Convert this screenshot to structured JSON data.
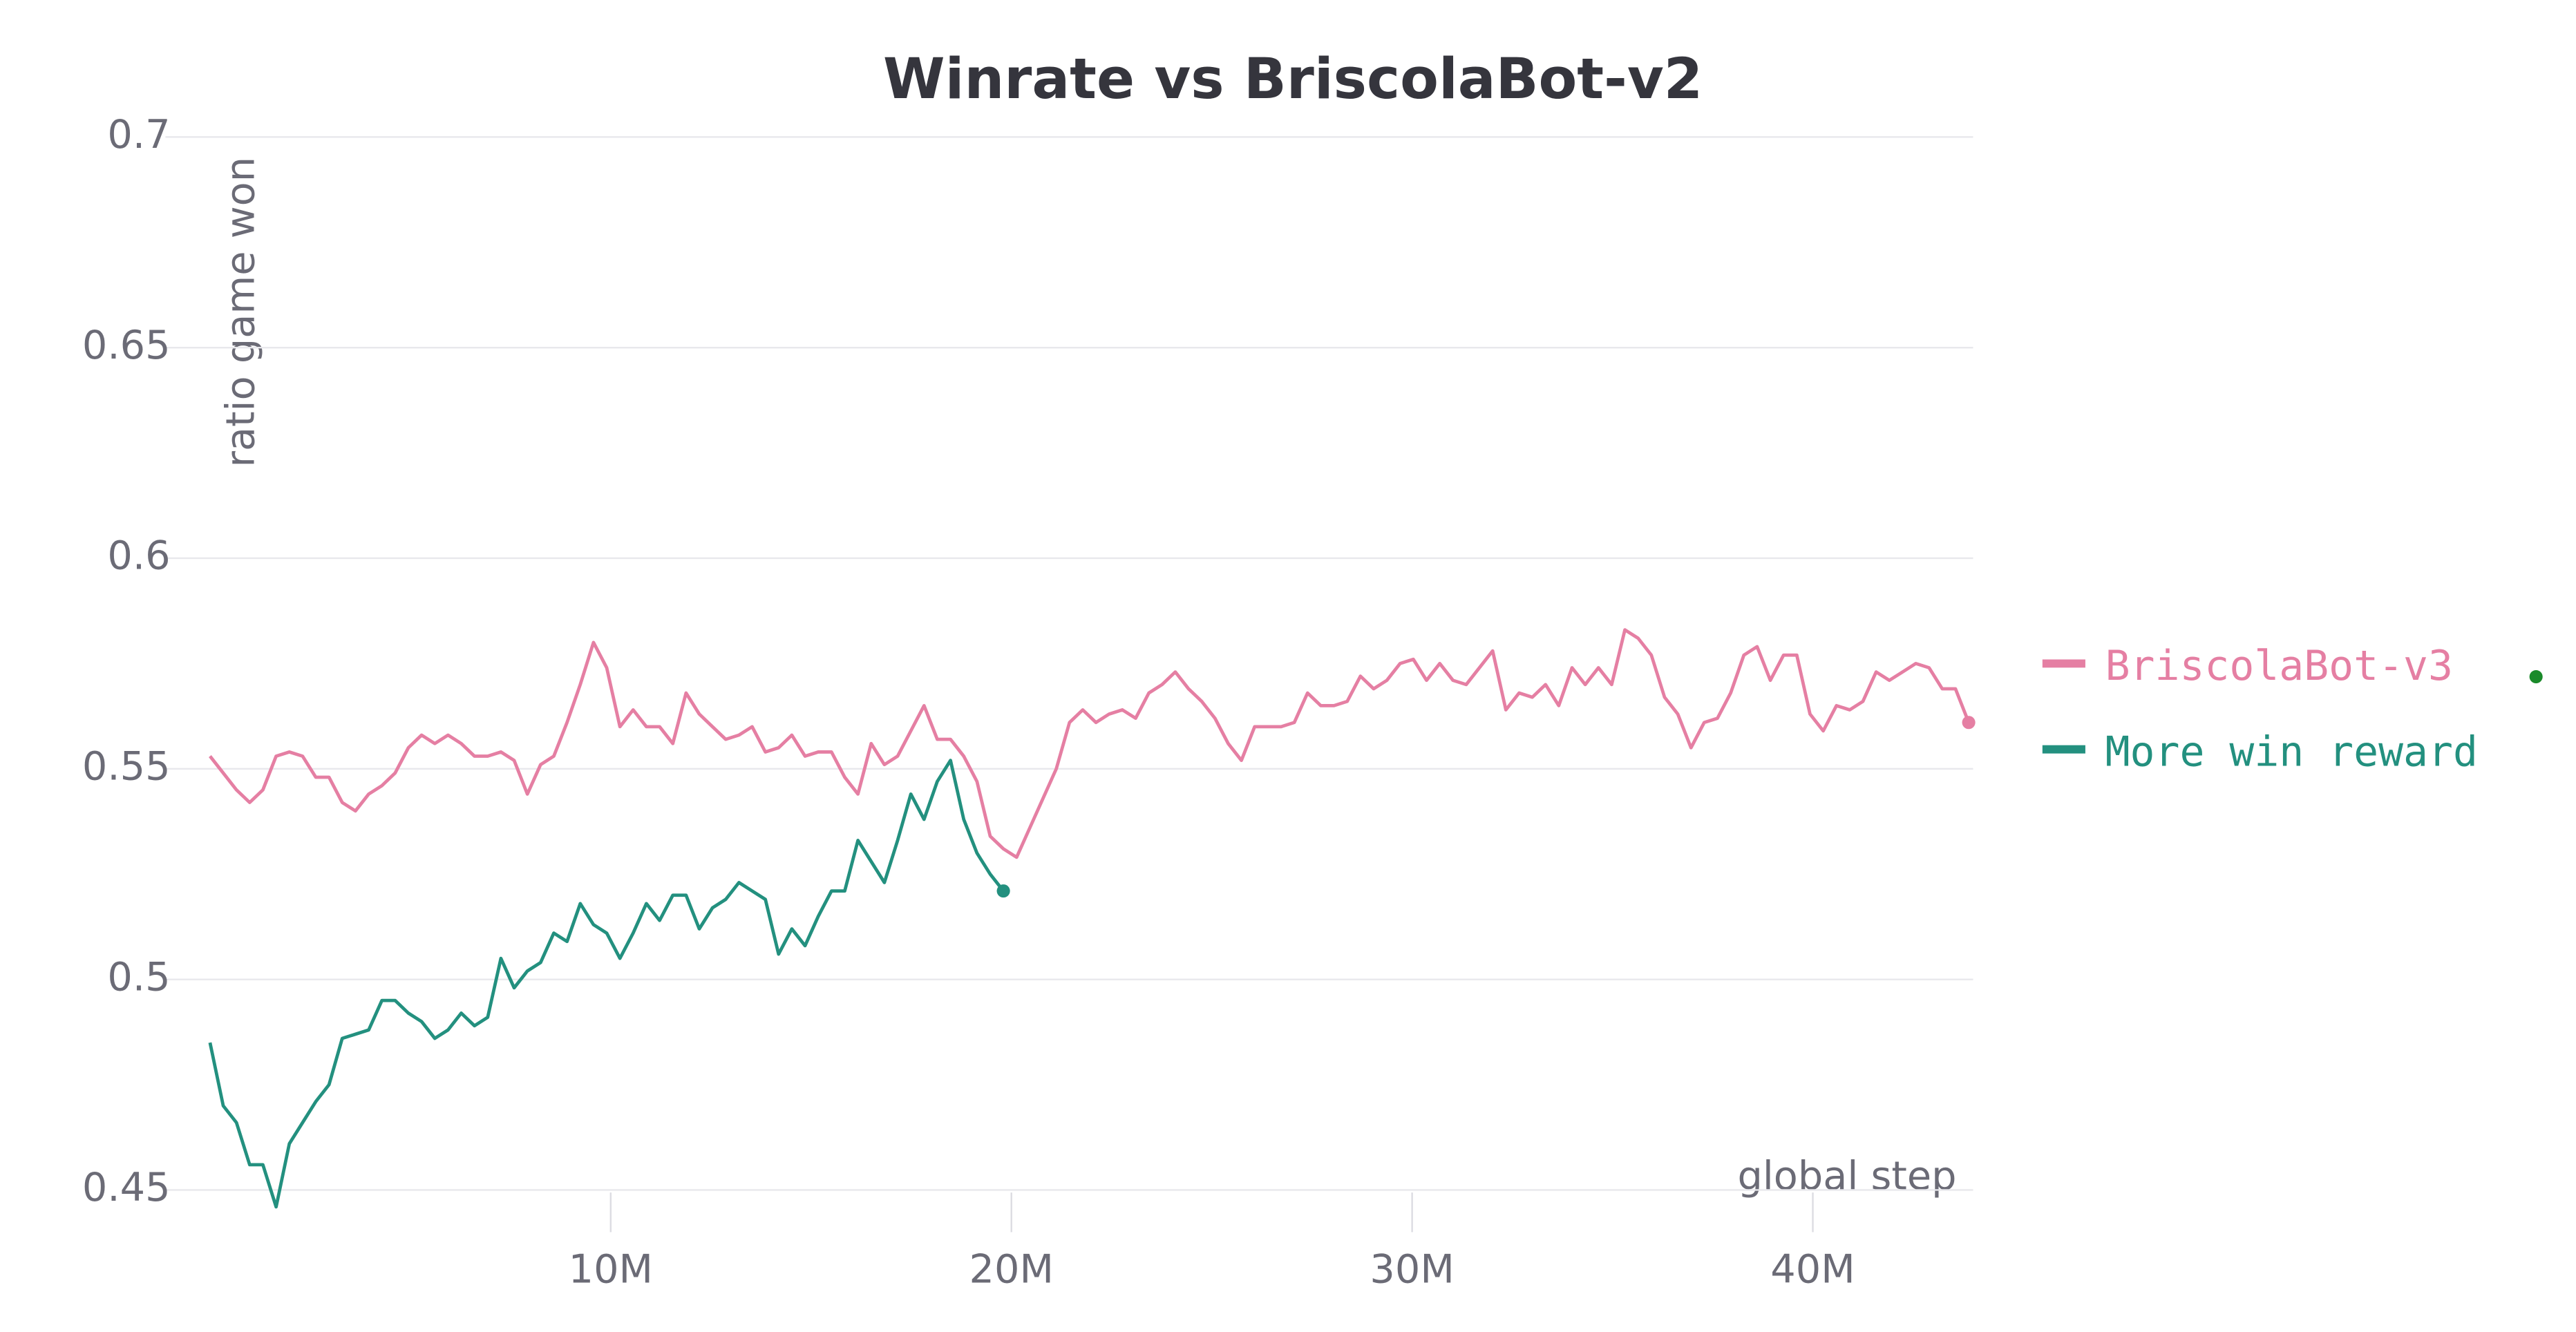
{
  "chart_data": {
    "type": "line",
    "title": "Winrate vs BriscolaBot-v2",
    "x_label": "global step",
    "y_label": "ratio game won",
    "xlim": [
      0,
      44000000
    ],
    "ylim": [
      0.44,
      0.7
    ],
    "xticks": [
      {
        "value": 10000000,
        "label": "10M"
      },
      {
        "value": 20000000,
        "label": "20M"
      },
      {
        "value": 30000000,
        "label": "30M"
      },
      {
        "value": 40000000,
        "label": "40M"
      }
    ],
    "yticks": [
      0.45,
      0.5,
      0.55,
      0.6,
      0.65,
      0.7
    ],
    "grid": true,
    "legend": "right",
    "series": [
      {
        "name": "BriscolaBot-v3",
        "color": "#e57fa3",
        "x": [
          0,
          330000,
          660000,
          990000,
          1320000,
          1650000,
          1980000,
          2310000,
          2640000,
          2970000,
          3300000,
          3630000,
          3960000,
          4290000,
          4620000,
          4950000,
          5280000,
          5610000,
          5940000,
          6270000,
          6600000,
          6930000,
          7260000,
          7590000,
          7920000,
          8250000,
          8580000,
          8910000,
          9240000,
          9570000,
          9900000,
          10230000,
          10560000,
          10890000,
          11220000,
          11550000,
          11880000,
          12210000,
          12540000,
          12870000,
          13200000,
          13530000,
          13860000,
          14190000,
          14520000,
          14850000,
          15180000,
          15510000,
          15840000,
          16170000,
          16500000,
          16830000,
          17160000,
          17490000,
          17820000,
          18150000,
          18480000,
          18810000,
          19140000,
          19470000,
          19800000,
          20130000,
          20460000,
          20790000,
          21120000,
          21450000,
          21780000,
          22110000,
          22440000,
          22770000,
          23100000,
          23430000,
          23760000,
          24090000,
          24420000,
          24750000,
          25080000,
          25410000,
          25740000,
          26070000,
          26400000,
          26730000,
          27060000,
          27390000,
          27720000,
          28050000,
          28380000,
          28710000,
          29040000,
          29370000,
          29700000,
          30030000,
          30360000,
          30690000,
          31020000,
          31350000,
          31680000,
          32010000,
          32340000,
          32670000,
          33000000,
          33330000,
          33660000,
          33990000,
          34320000,
          34650000,
          34980000,
          35310000,
          35640000,
          35970000,
          36300000,
          36630000,
          36960000,
          37290000,
          37620000,
          37950000,
          38280000,
          38610000,
          38940000,
          39270000,
          39600000,
          39930000,
          40260000,
          40590000,
          40920000,
          41250000,
          41580000,
          41910000,
          42240000,
          42570000,
          42900000,
          43230000,
          43560000,
          43890000
        ],
        "values": [
          0.553,
          0.549,
          0.545,
          0.542,
          0.545,
          0.553,
          0.554,
          0.553,
          0.548,
          0.548,
          0.542,
          0.54,
          0.544,
          0.546,
          0.549,
          0.555,
          0.558,
          0.556,
          0.558,
          0.556,
          0.553,
          0.553,
          0.554,
          0.552,
          0.544,
          0.551,
          0.553,
          0.561,
          0.57,
          0.58,
          0.574,
          0.56,
          0.564,
          0.56,
          0.56,
          0.556,
          0.568,
          0.563,
          0.56,
          0.557,
          0.558,
          0.56,
          0.554,
          0.555,
          0.558,
          0.553,
          0.554,
          0.554,
          0.548,
          0.544,
          0.556,
          0.551,
          0.553,
          0.559,
          0.565,
          0.557,
          0.557,
          0.553,
          0.547,
          0.534,
          0.531,
          0.529,
          0.536,
          0.543,
          0.55,
          0.561,
          0.564,
          0.561,
          0.563,
          0.564,
          0.562,
          0.568,
          0.57,
          0.573,
          0.569,
          0.566,
          0.562,
          0.556,
          0.552,
          0.56,
          0.56,
          0.56,
          0.561,
          0.568,
          0.565,
          0.565,
          0.566,
          0.572,
          0.569,
          0.571,
          0.575,
          0.576,
          0.571,
          0.575,
          0.571,
          0.57,
          0.574,
          0.578,
          0.564,
          0.568,
          0.567,
          0.57,
          0.565,
          0.574,
          0.57,
          0.574,
          0.57,
          0.583,
          0.581,
          0.577,
          0.567,
          0.563,
          0.555,
          0.561,
          0.562,
          0.568,
          0.577,
          0.579,
          0.571,
          0.577,
          0.577,
          0.563,
          0.559,
          0.565,
          0.564,
          0.566,
          0.573,
          0.571,
          0.573,
          0.575,
          0.574,
          0.569,
          0.569,
          0.561
        ]
      },
      {
        "name": "More win reward",
        "color": "#23907f",
        "x": [
          0,
          330000,
          660000,
          990000,
          1320000,
          1650000,
          1980000,
          2310000,
          2640000,
          2970000,
          3300000,
          3630000,
          3960000,
          4290000,
          4620000,
          4950000,
          5280000,
          5610000,
          5940000,
          6270000,
          6600000,
          6930000,
          7260000,
          7590000,
          7920000,
          8250000,
          8580000,
          8910000,
          9240000,
          9570000,
          9900000,
          10230000,
          10560000,
          10890000,
          11220000,
          11550000,
          11880000,
          12210000,
          12540000,
          12870000,
          13200000,
          13530000,
          13860000,
          14190000,
          14520000,
          14850000,
          15180000,
          15510000,
          15840000,
          16170000,
          16500000,
          16830000,
          17160000,
          17490000,
          17820000,
          18150000,
          18480000,
          18810000,
          19140000,
          19470000,
          19800000
        ],
        "values": [
          0.485,
          0.47,
          0.466,
          0.456,
          0.456,
          0.446,
          0.461,
          0.466,
          0.471,
          0.475,
          0.486,
          0.487,
          0.488,
          0.495,
          0.495,
          0.492,
          0.49,
          0.486,
          0.488,
          0.492,
          0.489,
          0.491,
          0.505,
          0.498,
          0.502,
          0.504,
          0.511,
          0.509,
          0.518,
          0.513,
          0.511,
          0.505,
          0.511,
          0.518,
          0.514,
          0.52,
          0.52,
          0.512,
          0.517,
          0.519,
          0.523,
          0.521,
          0.519,
          0.506,
          0.512,
          0.508,
          0.515,
          0.521,
          0.521,
          0.533,
          0.528,
          0.523,
          0.533,
          0.544,
          0.538,
          0.547,
          0.552,
          0.538,
          0.53,
          0.525,
          0.521
        ]
      }
    ]
  }
}
